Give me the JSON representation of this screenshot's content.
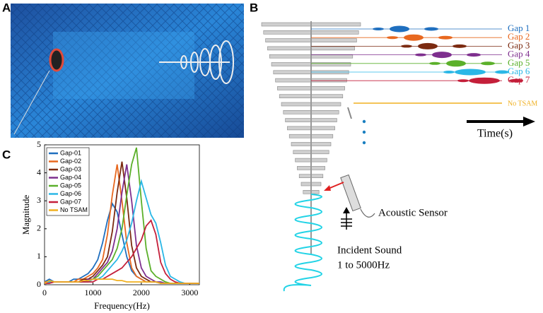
{
  "panel_labels": [
    "A",
    "B",
    "C"
  ],
  "diagram": {
    "gap_labels": [
      "Gap 1",
      "Gap 2",
      "Gap 3",
      "Gap 4",
      "Gap 5",
      "Gap 6",
      "Gap 7"
    ],
    "baseline_label": "No TSAM",
    "time_label": "Time(s)",
    "sensor_label": "Acoustic Sensor",
    "incident_label": [
      "Incident Sound",
      "1 to 5000Hz"
    ]
  },
  "chart_data": {
    "type": "line",
    "xlabel": "Frequency(Hz)",
    "ylabel": "Magnitude",
    "x": [
      0,
      100,
      200,
      300,
      400,
      500,
      600,
      700,
      800,
      900,
      1000,
      1100,
      1200,
      1300,
      1400,
      1500,
      1600,
      1700,
      1800,
      1900,
      2000,
      2100,
      2200,
      2300,
      2400,
      2500,
      2600,
      2700,
      2800,
      2900,
      3000,
      3100,
      3200
    ],
    "xlim": [
      0,
      3200
    ],
    "xticks": [
      0,
      1000,
      2000,
      3000
    ],
    "ylim": [
      0,
      5
    ],
    "yticks": [
      0,
      1,
      2,
      3,
      4,
      5
    ],
    "legend": "upper left",
    "series": [
      {
        "name": "Gap-01",
        "color": "#1f6fbf",
        "values": [
          0.1,
          0.2,
          0.1,
          0.1,
          0.1,
          0.1,
          0.2,
          0.2,
          0.3,
          0.4,
          0.6,
          0.9,
          1.5,
          2.3,
          2.9,
          2.6,
          1.8,
          1.0,
          0.5,
          0.3,
          0.2,
          0.1,
          0.1,
          0.1,
          0.05,
          0.05,
          0.05,
          0.05,
          0.05,
          0.05,
          0.05,
          0.05,
          0.05
        ]
      },
      {
        "name": "Gap-02",
        "color": "#e8681f",
        "values": [
          0.1,
          0.1,
          0.1,
          0.1,
          0.1,
          0.1,
          0.1,
          0.2,
          0.2,
          0.3,
          0.4,
          0.6,
          0.9,
          1.8,
          3.2,
          4.3,
          3.0,
          1.5,
          0.6,
          0.3,
          0.2,
          0.1,
          0.1,
          0.1,
          0.05,
          0.05,
          0.05,
          0.05,
          0.05,
          0.05,
          0.05,
          0.05,
          0.05
        ]
      },
      {
        "name": "Gap-03",
        "color": "#7b2a10",
        "values": [
          0.05,
          0.1,
          0.1,
          0.1,
          0.1,
          0.1,
          0.1,
          0.1,
          0.2,
          0.2,
          0.3,
          0.5,
          0.7,
          1.0,
          1.9,
          3.3,
          4.4,
          3.1,
          1.4,
          0.6,
          0.3,
          0.2,
          0.1,
          0.1,
          0.05,
          0.05,
          0.05,
          0.05,
          0.05,
          0.05,
          0.05,
          0.05,
          0.05
        ]
      },
      {
        "name": "Gap-04",
        "color": "#7e2f8e",
        "values": [
          0.05,
          0.1,
          0.1,
          0.1,
          0.1,
          0.1,
          0.1,
          0.1,
          0.1,
          0.2,
          0.2,
          0.4,
          0.6,
          0.8,
          1.2,
          2.0,
          3.3,
          4.3,
          3.0,
          1.4,
          0.6,
          0.3,
          0.2,
          0.1,
          0.1,
          0.05,
          0.05,
          0.05,
          0.05,
          0.05,
          0.05,
          0.05,
          0.05
        ]
      },
      {
        "name": "Gap-05",
        "color": "#5bb02a",
        "values": [
          0.05,
          0.1,
          0.1,
          0.1,
          0.1,
          0.1,
          0.1,
          0.1,
          0.1,
          0.1,
          0.2,
          0.3,
          0.5,
          0.7,
          0.9,
          1.3,
          2.0,
          3.2,
          4.3,
          4.9,
          3.0,
          1.3,
          0.5,
          0.3,
          0.2,
          0.1,
          0.05,
          0.05,
          0.05,
          0.05,
          0.05,
          0.05,
          0.05
        ]
      },
      {
        "name": "Gap-06",
        "color": "#2ab7e6",
        "values": [
          0.05,
          0.1,
          0.1,
          0.1,
          0.1,
          0.1,
          0.1,
          0.1,
          0.1,
          0.1,
          0.2,
          0.2,
          0.3,
          0.5,
          0.7,
          0.9,
          1.2,
          1.6,
          2.2,
          3.0,
          3.7,
          3.1,
          2.5,
          2.2,
          1.5,
          0.7,
          0.3,
          0.2,
          0.1,
          0.05,
          0.05,
          0.05,
          0.05
        ]
      },
      {
        "name": "Gap-07",
        "color": "#c41f3a",
        "values": [
          0.05,
          0.05,
          0.1,
          0.1,
          0.1,
          0.1,
          0.1,
          0.1,
          0.1,
          0.1,
          0.1,
          0.2,
          0.2,
          0.3,
          0.4,
          0.5,
          0.6,
          0.8,
          1.0,
          1.3,
          1.6,
          2.1,
          2.3,
          1.8,
          0.8,
          0.4,
          0.2,
          0.1,
          0.05,
          0.05,
          0.05,
          0.05,
          0.05
        ]
      },
      {
        "name": "No TSAM",
        "color": "#f0b020",
        "values": [
          0.05,
          0.15,
          0.1,
          0.1,
          0.1,
          0.1,
          0.1,
          0.1,
          0.15,
          0.15,
          0.2,
          0.2,
          0.2,
          0.2,
          0.2,
          0.15,
          0.15,
          0.1,
          0.1,
          0.1,
          0.1,
          0.1,
          0.1,
          0.1,
          0.05,
          0.05,
          0.05,
          0.05,
          0.05,
          0.05,
          0.05,
          0.05,
          0.05
        ]
      }
    ]
  }
}
